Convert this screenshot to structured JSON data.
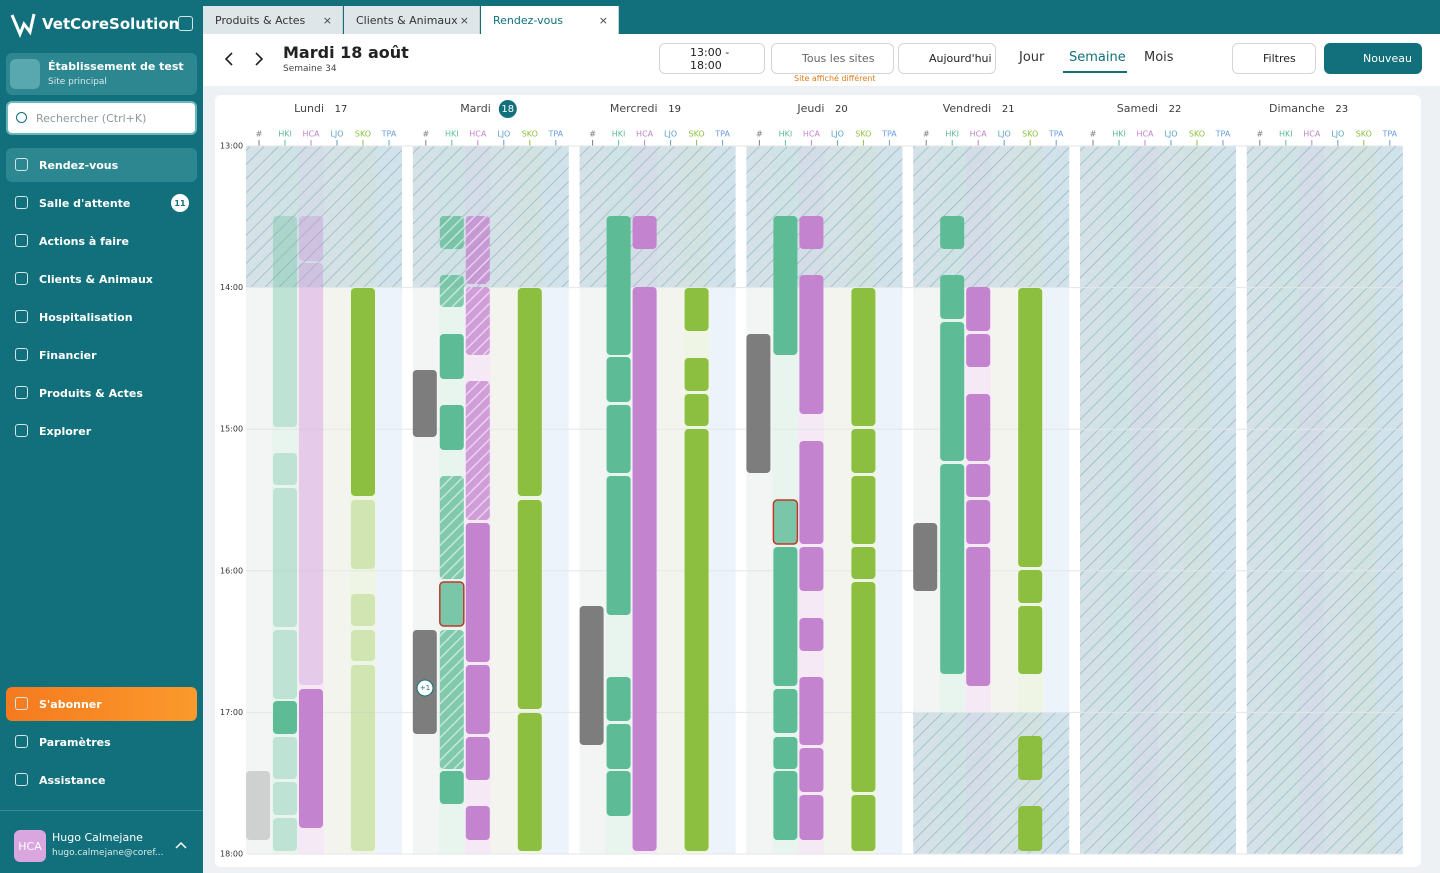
{
  "sidebar": {
    "brand": "VetCoreSolution",
    "establishment": "Établissement de test",
    "site": "Site principal",
    "search": "Rechercher (Ctrl+K)",
    "nav": [
      "Rendez-vous",
      "Salle d'attente",
      "Actions à faire",
      "Clients & Animaux",
      "Hospitalisation",
      "Financier",
      "Produits & Actes",
      "Explorer"
    ],
    "waiting_badge": "11",
    "bottom": [
      "S'abonner",
      "Paramètres",
      "Assistance"
    ],
    "user": {
      "initials": "HCA",
      "name": "Hugo Calmejane",
      "email": "hugo.calmejane@coref..."
    }
  },
  "tabs": [
    "Produits & Actes",
    "Clients & Animaux",
    "Rendez-vous"
  ],
  "header": {
    "date": "Mardi 18 août",
    "week": "Semaine 34",
    "time_range": "13:00  -  18:00",
    "sites": "Tous les sites",
    "site_warning": "Site affiché différent",
    "today": "Aujourd'hui",
    "views": [
      "Jour",
      "Semaine",
      "Mois"
    ],
    "filters": "Filtres",
    "new": "Nouveau"
  },
  "calendar": {
    "days": [
      {
        "name": "Lundi",
        "num": "17"
      },
      {
        "name": "Mardi",
        "num": "18"
      },
      {
        "name": "Mercredi",
        "num": "19"
      },
      {
        "name": "Jeudi",
        "num": "20"
      },
      {
        "name": "Vendredi",
        "num": "21"
      },
      {
        "name": "Samedi",
        "num": "22"
      },
      {
        "name": "Dimanche",
        "num": "23"
      }
    ],
    "columns": [
      "#",
      "HKI",
      "HCA",
      "LJO",
      "SKO",
      "TPA"
    ],
    "hours": [
      "13:00",
      "14:00",
      "15:00",
      "16:00",
      "17:00",
      "18:00"
    ],
    "more_badge": "+1"
  }
}
